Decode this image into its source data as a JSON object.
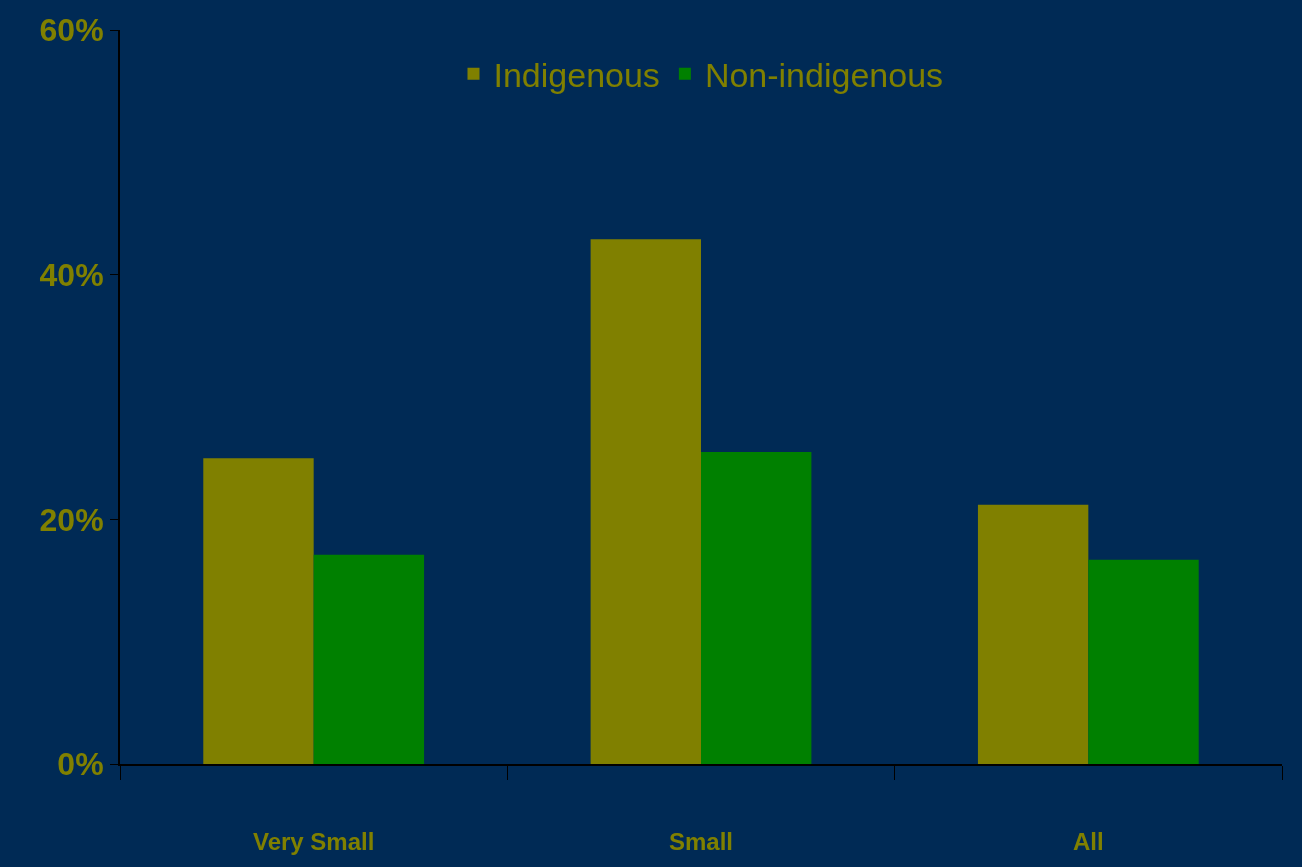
{
  "chart_data": {
    "type": "bar",
    "categories": [
      "Very Small",
      "Small",
      "All"
    ],
    "series": [
      {
        "name": "Indigenous",
        "color": "#808000",
        "values": [
          25.0,
          42.9,
          21.2
        ]
      },
      {
        "name": "Non-indigenous",
        "color": "#008000",
        "values": [
          17.1,
          25.5,
          16.7
        ]
      }
    ],
    "ylim": [
      0,
      60
    ],
    "yticks": [
      {
        "value": 0,
        "label": "0%"
      },
      {
        "value": 20,
        "label": "20%"
      },
      {
        "value": 40,
        "label": "40%"
      },
      {
        "value": 60,
        "label": "60%"
      }
    ],
    "grid": false,
    "legend": "top"
  }
}
